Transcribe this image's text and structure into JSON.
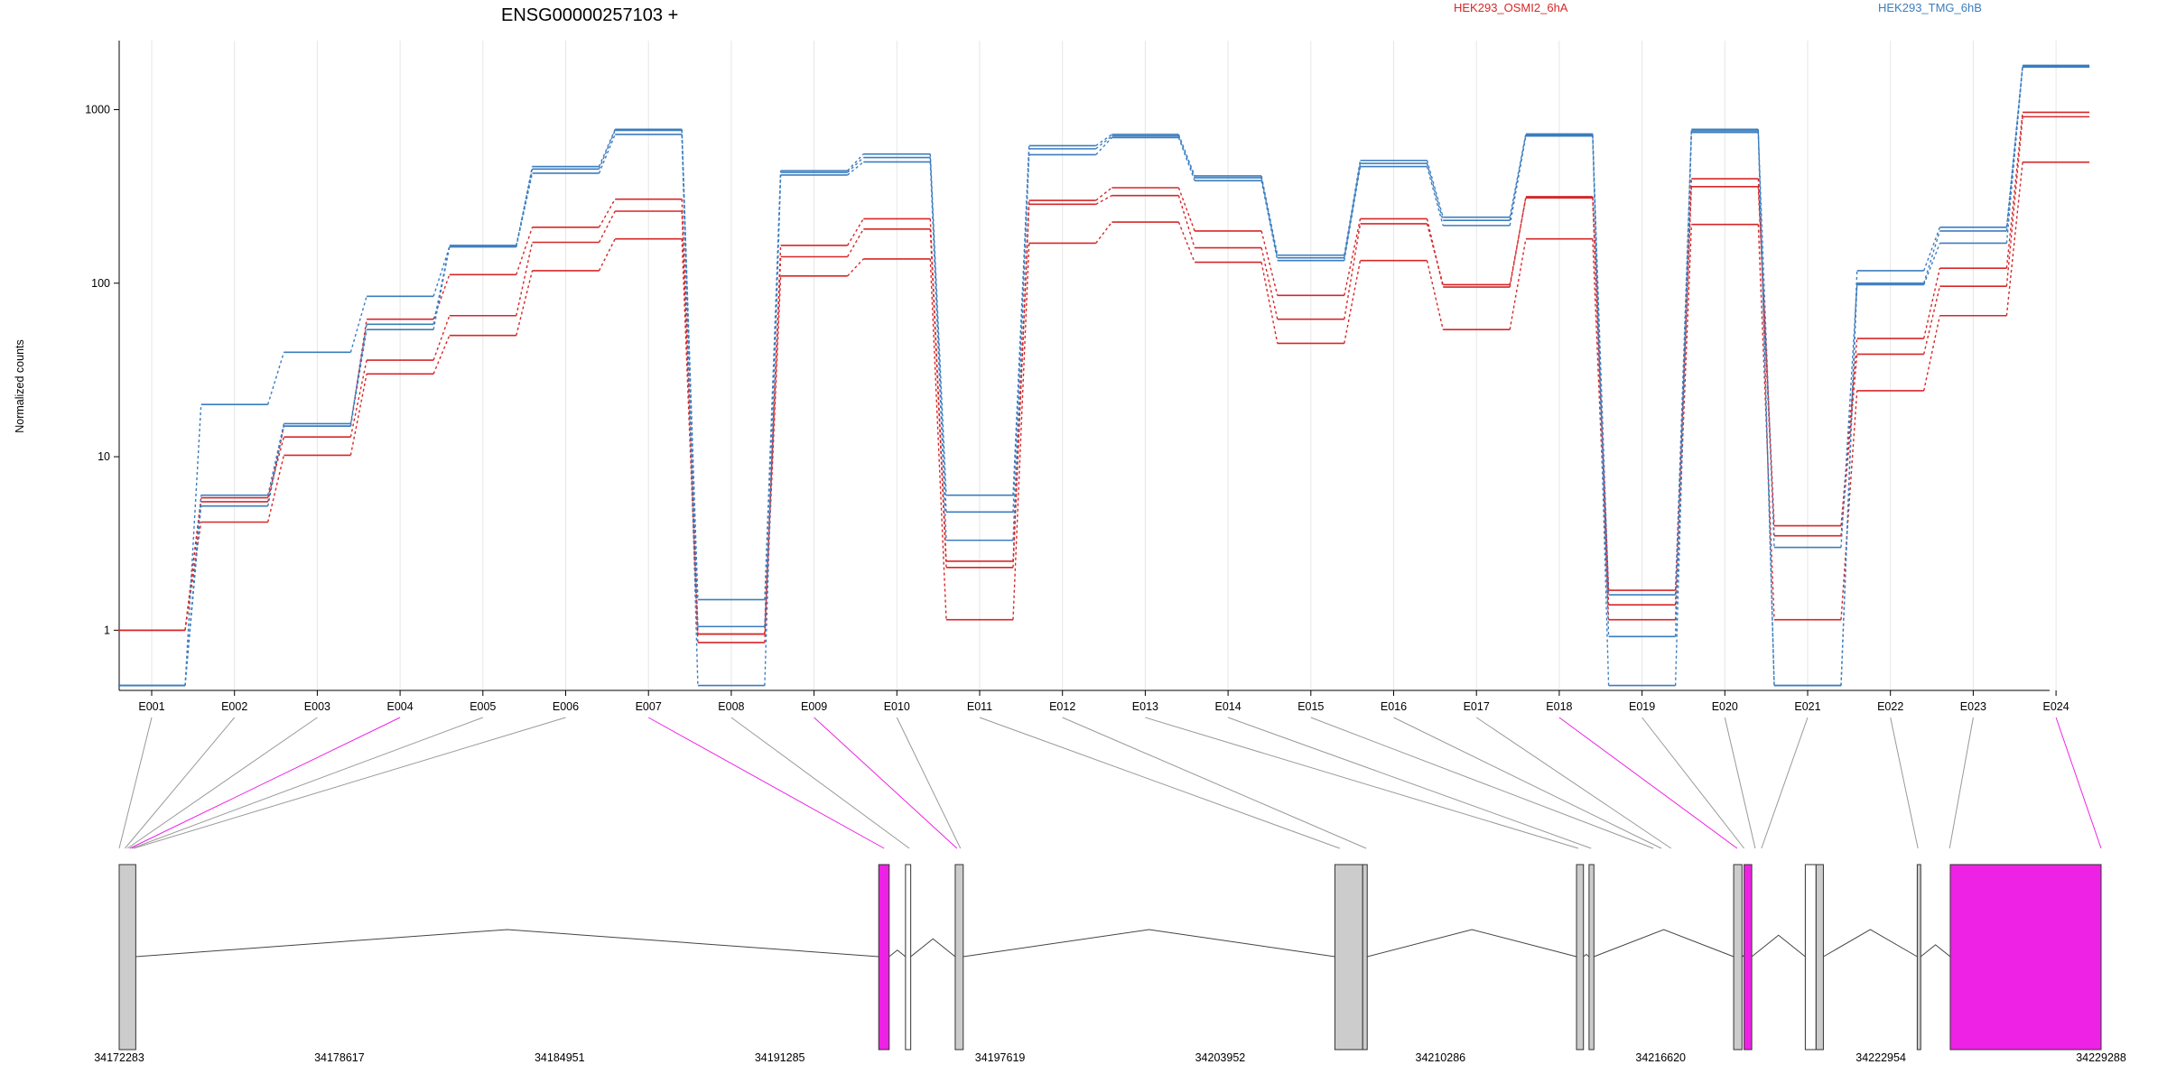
{
  "chart_data": {
    "type": "line",
    "title": "ENSG00000257103 +",
    "ylabel": "Normalized counts",
    "yscale": "log",
    "ylim": [
      0.45,
      2500
    ],
    "yticks": [
      1,
      10,
      100,
      1000
    ],
    "ytick_labels": [
      "1",
      "10",
      "100",
      "1000"
    ],
    "grid": true,
    "legend_position": "top",
    "colors": {
      "HEK293_OSMI2_6hA": "#d62728",
      "HEK293_TMG_6hB": "#3b7dbe",
      "highlight": "#ee22e4",
      "exon": "#cccccc"
    },
    "categories": [
      "E001",
      "E002",
      "E003",
      "E004",
      "E005",
      "E006",
      "E007",
      "E008",
      "E009",
      "E010",
      "E011",
      "E012",
      "E013",
      "E014",
      "E015",
      "E016",
      "E017",
      "E018",
      "E019",
      "E020",
      "E021",
      "E022",
      "E023",
      "E024"
    ],
    "series": [
      {
        "name": "HEK293_OSMI2_6hA",
        "replicates": [
          {
            "values": [
              1.0,
              5.5,
              15,
              62,
              112,
              210,
              305,
              0.95,
              165,
              235,
              2.5,
              300,
              355,
              200,
              85,
              235,
              95,
              315,
              1.4,
              400,
              4.0,
              48,
              122,
              965
            ]
          },
          {
            "values": [
              1.0,
              4.2,
              10.2,
              30,
              50,
              118,
              180,
              0.85,
              110,
              138,
              1.15,
              170,
              225,
              132,
              45,
              135,
              54,
              180,
              1.15,
              218,
              1.15,
              24,
              65,
              498
            ]
          },
          {
            "values": [
              1.0,
              5.8,
              13,
              36,
              65,
              172,
              260,
              0.95,
              142,
              205,
              2.3,
              285,
              320,
              160,
              62,
              220,
              98,
              310,
              1.7,
              360,
              3.5,
              39,
              96,
              910
            ]
          }
        ]
      },
      {
        "name": "HEK293_TMG_6hB",
        "replicates": [
          {
            "values": [
              0.48,
              20,
              40,
              84,
              162,
              470,
              770,
              1.5,
              445,
              555,
              6.0,
              620,
              720,
              415,
              145,
              510,
              240,
              725,
              0.92,
              770,
              0.48,
              118,
              210,
              1800
            ]
          },
          {
            "values": [
              0.48,
              5.2,
              15,
              54,
              162,
              430,
              720,
              0.48,
              420,
              500,
              3.3,
              550,
              690,
              390,
              135,
              470,
              215,
              705,
              0.48,
              740,
              3.0,
              98,
              170,
              1760
            ]
          },
          {
            "values": [
              0.48,
              6.0,
              15.5,
              58,
              165,
              455,
              760,
              1.05,
              435,
              530,
              4.8,
              595,
              705,
              405,
              140,
              490,
              230,
              715,
              1.6,
              755,
              0.48,
              100,
              200,
              1780
            ]
          }
        ]
      }
    ],
    "gene_model": {
      "coordinate_ticks": [
        "34172283",
        "34178617",
        "34184951",
        "34191285",
        "34197619",
        "34203952",
        "34210286",
        "34216620",
        "34222954",
        "34229288"
      ],
      "exon_positions": [
        34172283,
        34172450,
        34172520,
        34172590,
        34172650,
        34172700,
        34194285,
        34195010,
        34196380,
        34196480,
        34207390,
        34208150,
        34214250,
        34214620,
        34216410,
        34216640,
        34216920,
        34218820,
        34219020,
        34219340,
        34219520,
        34224020,
        34224930,
        34229288
      ],
      "highlighted_exons": [
        "E004",
        "E007",
        "E009",
        "E018",
        "E024"
      ]
    }
  }
}
